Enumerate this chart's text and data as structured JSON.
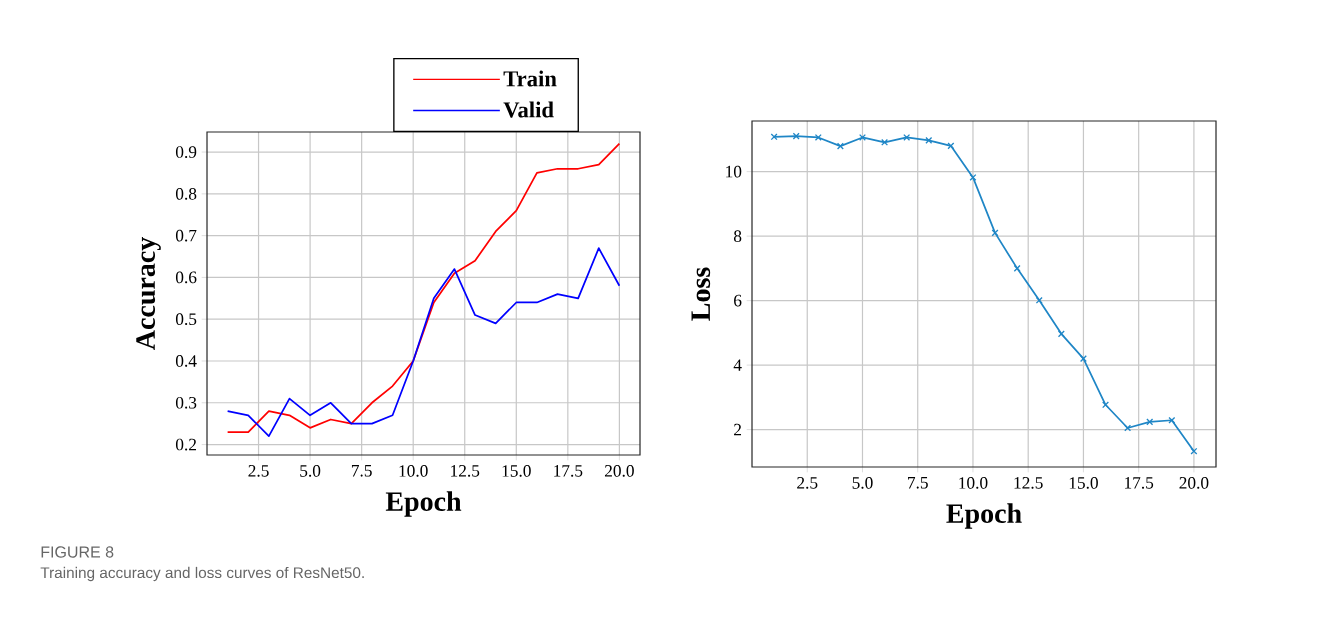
{
  "chart_data": [
    {
      "type": "line",
      "xlabel": "Epoch",
      "ylabel": "Accuracy",
      "x": [
        1,
        2,
        3,
        4,
        5,
        6,
        7,
        8,
        9,
        10,
        11,
        12,
        13,
        14,
        15,
        16,
        17,
        18,
        19,
        20
      ],
      "series": [
        {
          "name": "Train",
          "color": "#ff0000",
          "values": [
            0.23,
            0.23,
            0.28,
            0.27,
            0.24,
            0.26,
            0.25,
            0.3,
            0.34,
            0.4,
            0.54,
            0.61,
            0.64,
            0.71,
            0.76,
            0.85,
            0.86,
            0.86,
            0.87,
            0.92
          ]
        },
        {
          "name": "Valid",
          "color": "#0000ff",
          "values": [
            0.28,
            0.27,
            0.22,
            0.31,
            0.27,
            0.3,
            0.25,
            0.25,
            0.27,
            0.4,
            0.55,
            0.62,
            0.51,
            0.49,
            0.54,
            0.54,
            0.56,
            0.55,
            0.67,
            0.58
          ]
        }
      ],
      "xlim": [
        0,
        21
      ],
      "ylim": [
        0.175,
        0.948
      ],
      "xticks": [
        {
          "value": 2.5,
          "label": "2.5"
        },
        {
          "value": 5,
          "label": "5.0"
        },
        {
          "value": 7.5,
          "label": "7.5"
        },
        {
          "value": 10,
          "label": "10.0"
        },
        {
          "value": 12.5,
          "label": "12.5"
        },
        {
          "value": 15,
          "label": "15.0"
        },
        {
          "value": 17.5,
          "label": "17.5"
        },
        {
          "value": 20,
          "label": "20.0"
        }
      ],
      "yticks": [
        0.2,
        0.3,
        0.4,
        0.5,
        0.6,
        0.7,
        0.8,
        0.9
      ],
      "grid": true,
      "legend": "top",
      "marker": "none",
      "line_style": "solid",
      "annotations": [
        "FIGURE 8",
        "Training accuracy and loss curves of ResNet50."
      ]
    },
    {
      "type": "line",
      "xlabel": "Epoch",
      "ylabel": "Loss",
      "x": [
        1,
        2,
        3,
        4,
        5,
        6,
        7,
        8,
        9,
        10,
        11,
        12,
        13,
        14,
        15,
        16,
        17,
        18,
        19,
        20
      ],
      "series": [
        {
          "color": "#1f86c6",
          "values": [
            11.08,
            11.1,
            11.06,
            10.79,
            11.06,
            10.91,
            11.06,
            10.97,
            10.8,
            9.82,
            8.1,
            7.0,
            6.01,
            4.97,
            4.2,
            2.77,
            2.05,
            2.24,
            2.29,
            1.33
          ]
        }
      ],
      "xlim": [
        0,
        21
      ],
      "ylim": [
        0.84,
        11.57
      ],
      "xticks": [
        {
          "value": 2.5,
          "label": "2.5"
        },
        {
          "value": 5,
          "label": "5.0"
        },
        {
          "value": 7.5,
          "label": "7.5"
        },
        {
          "value": 10,
          "label": "10.0"
        },
        {
          "value": 12.5,
          "label": "12.5"
        },
        {
          "value": 15,
          "label": "15.0"
        },
        {
          "value": 17.5,
          "label": "17.5"
        },
        {
          "value": 20,
          "label": "20.0"
        }
      ],
      "yticks": [
        2,
        4,
        6,
        8,
        10
      ],
      "grid": true,
      "marker": "cross",
      "line_style": "solid"
    }
  ]
}
